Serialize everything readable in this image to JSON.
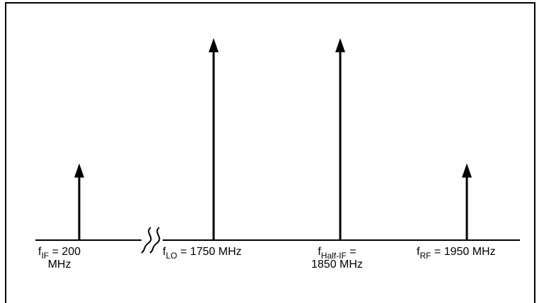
{
  "labels": {
    "if": {
      "sym": "f",
      "sub": "IF",
      "rest": " = 200",
      "line2": "MHz"
    },
    "lo": {
      "sym": "f",
      "sub": "LO",
      "rest": " = 1750 MHz"
    },
    "half_if": {
      "sym": "f",
      "sub": "Half-IF",
      "rest": " =",
      "line2": "1850 MHz"
    },
    "rf": {
      "sym": "f",
      "sub": "RF",
      "rest": " = 1950 MHz"
    }
  },
  "spectrum": [
    {
      "id": "if",
      "frequency_mhz": 200,
      "relative_level": 0.38
    },
    {
      "id": "lo",
      "frequency_mhz": 1750,
      "relative_level": 1.0
    },
    {
      "id": "half_if",
      "frequency_mhz": 1850,
      "relative_level": 1.0
    },
    {
      "id": "rf",
      "frequency_mhz": 1950,
      "relative_level": 0.38
    }
  ],
  "axis_break": true,
  "colors": {
    "ink": "#000000",
    "background": "#ffffff"
  }
}
